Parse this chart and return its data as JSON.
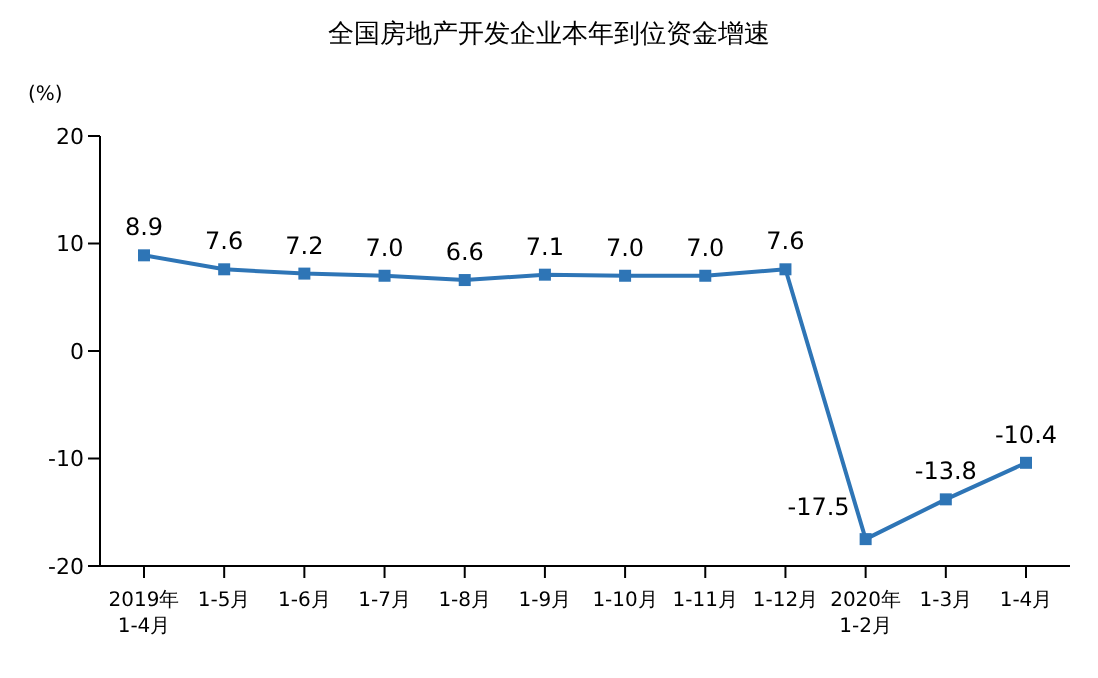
{
  "chart_data": {
    "type": "line",
    "title": "全国房地产开发企业本年到位资金增速",
    "ylabel": "(%)",
    "categories": [
      "2019年\n1-4月",
      "1-5月",
      "1-6月",
      "1-7月",
      "1-8月",
      "1-9月",
      "1-10月",
      "1-11月",
      "1-12月",
      "2020年\n1-2月",
      "1-3月",
      "1-4月"
    ],
    "series": [
      {
        "color": "#2e75b6",
        "values": [
          8.9,
          7.6,
          7.2,
          7.0,
          6.6,
          7.1,
          7.0,
          7.0,
          7.6,
          -17.5,
          -13.8,
          -10.4
        ],
        "value_labels": [
          "8.9",
          "7.6",
          "7.2",
          "7.0",
          "6.6",
          "7.1",
          "7.0",
          "7.0",
          "7.6",
          "-17.5",
          "-13.8",
          "-10.4"
        ]
      }
    ],
    "ylim": [
      -20,
      20
    ],
    "yticks": [
      -20,
      -10,
      0,
      10,
      20
    ],
    "grid": false,
    "marker": "square",
    "line_style": "solid"
  }
}
